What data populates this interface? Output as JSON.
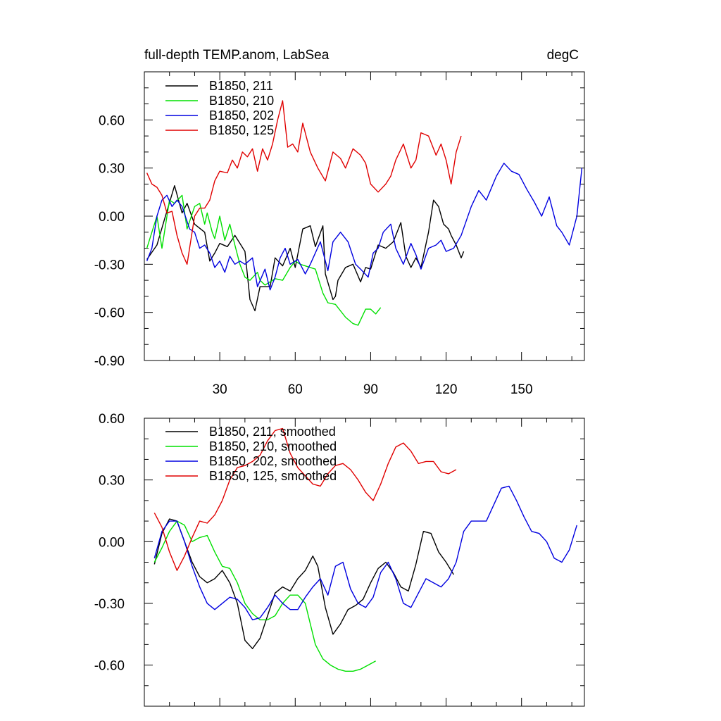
{
  "chart_data": [
    {
      "type": "line",
      "title_left": "full-depth TEMP.anom, LabSea",
      "title_right": "degC",
      "xlabel": "",
      "ylabel": "",
      "xlim": [
        0,
        175
      ],
      "ylim": [
        -0.9,
        0.9
      ],
      "xticks": [
        30,
        60,
        90,
        120,
        150
      ],
      "xtick_labels": [
        "30",
        "60",
        "90",
        "120",
        "150"
      ],
      "yticks": [
        -0.9,
        -0.6,
        -0.3,
        0.0,
        0.3,
        0.6
      ],
      "ytick_labels": [
        "-0.90",
        "-0.60",
        "-0.30",
        "0.00",
        "0.30",
        "0.60"
      ],
      "legend_position": "top-left",
      "grid": false,
      "series": [
        {
          "name": "B1850, 211",
          "color": "#000000",
          "x": [
            1,
            5,
            8,
            12,
            15,
            17,
            20,
            24,
            26,
            28,
            30,
            33,
            36,
            40,
            42,
            44,
            46,
            50,
            52,
            55,
            58,
            60,
            63,
            66,
            68,
            71,
            72,
            75,
            76,
            77,
            80,
            83,
            86,
            88,
            90,
            93,
            96,
            99,
            102,
            104,
            106,
            108,
            110,
            113,
            115,
            117,
            119,
            121,
            122,
            124,
            126,
            127
          ],
          "y": [
            -0.27,
            -0.18,
            -0.02,
            0.19,
            0.02,
            0.08,
            -0.05,
            -0.1,
            -0.28,
            -0.23,
            -0.17,
            -0.19,
            -0.12,
            -0.22,
            -0.52,
            -0.59,
            -0.44,
            -0.44,
            -0.26,
            -0.31,
            -0.2,
            -0.32,
            -0.08,
            -0.06,
            -0.19,
            -0.06,
            -0.36,
            -0.52,
            -0.5,
            -0.4,
            -0.32,
            -0.3,
            -0.41,
            -0.32,
            -0.33,
            -0.18,
            -0.2,
            -0.16,
            -0.04,
            -0.25,
            -0.32,
            -0.26,
            -0.32,
            -0.1,
            0.1,
            0.06,
            -0.05,
            -0.08,
            -0.12,
            -0.18,
            -0.26,
            -0.22
          ]
        },
        {
          "name": "B1850, 210",
          "color": "#00e000",
          "x": [
            1,
            3,
            5,
            7,
            10,
            12,
            15,
            17,
            20,
            22,
            24,
            25,
            27,
            28,
            30,
            32,
            34,
            36,
            38,
            40,
            42,
            45,
            46,
            48,
            52,
            55,
            58,
            60,
            62,
            66,
            68,
            71,
            73,
            76,
            80,
            83,
            85,
            88,
            90,
            92,
            94
          ],
          "y": [
            -0.2,
            -0.1,
            0.0,
            -0.2,
            0.1,
            0.08,
            0.13,
            -0.08,
            0.06,
            0.08,
            -0.05,
            0.02,
            -0.1,
            -0.14,
            0.0,
            -0.15,
            -0.05,
            -0.18,
            -0.3,
            -0.38,
            -0.4,
            -0.35,
            -0.4,
            -0.43,
            -0.39,
            -0.4,
            -0.32,
            -0.28,
            -0.3,
            -0.32,
            -0.33,
            -0.48,
            -0.54,
            -0.55,
            -0.63,
            -0.67,
            -0.68,
            -0.58,
            -0.58,
            -0.61,
            -0.57
          ]
        },
        {
          "name": "B1850, 202",
          "color": "#0000e0",
          "x": [
            1,
            3,
            5,
            7,
            9,
            11,
            13,
            15,
            18,
            20,
            22,
            24,
            26,
            28,
            30,
            32,
            34,
            36,
            38,
            40,
            43,
            45,
            48,
            50,
            52,
            54,
            56,
            58,
            61,
            64,
            66,
            70,
            73,
            75,
            78,
            81,
            84,
            86,
            89,
            91,
            93,
            95,
            98,
            100,
            103,
            106,
            108,
            110,
            113,
            116,
            118,
            120,
            123,
            126,
            130,
            133,
            136,
            140,
            143,
            146,
            149,
            152,
            155,
            158,
            161,
            164,
            166,
            169,
            172,
            174
          ],
          "y": [
            -0.28,
            -0.2,
            0.0,
            0.1,
            0.13,
            0.06,
            0.1,
            0.06,
            -0.08,
            -0.1,
            -0.2,
            -0.18,
            -0.23,
            -0.32,
            -0.28,
            -0.35,
            -0.25,
            -0.3,
            -0.28,
            -0.3,
            -0.26,
            -0.44,
            -0.33,
            -0.46,
            -0.38,
            -0.26,
            -0.2,
            -0.3,
            -0.27,
            -0.36,
            -0.3,
            -0.16,
            -0.34,
            -0.16,
            -0.1,
            -0.16,
            -0.3,
            -0.33,
            -0.38,
            -0.23,
            -0.2,
            -0.1,
            -0.05,
            -0.2,
            -0.3,
            -0.17,
            -0.24,
            -0.33,
            -0.2,
            -0.18,
            -0.15,
            -0.22,
            -0.2,
            -0.12,
            0.06,
            0.16,
            0.1,
            0.25,
            0.33,
            0.28,
            0.26,
            0.17,
            0.09,
            0.0,
            0.12,
            -0.06,
            -0.1,
            -0.18,
            0.0,
            0.3
          ]
        },
        {
          "name": "B1850, 125",
          "color": "#e00000",
          "x": [
            1,
            3,
            5,
            7,
            9,
            11,
            13,
            15,
            17,
            20,
            22,
            24,
            26,
            28,
            30,
            33,
            35,
            37,
            39,
            41,
            43,
            45,
            47,
            49,
            51,
            53,
            55,
            57,
            59,
            61,
            63,
            66,
            69,
            72,
            75,
            78,
            80,
            83,
            86,
            88,
            90,
            93,
            96,
            98,
            100,
            103,
            106,
            108,
            110,
            113,
            116,
            118,
            120,
            122,
            124,
            126
          ],
          "y": [
            0.27,
            0.2,
            0.18,
            0.13,
            0.02,
            0.03,
            -0.12,
            -0.23,
            -0.3,
            0.0,
            0.05,
            0.05,
            0.1,
            0.22,
            0.28,
            0.27,
            0.35,
            0.3,
            0.4,
            0.37,
            0.42,
            0.28,
            0.42,
            0.35,
            0.45,
            0.6,
            0.72,
            0.43,
            0.45,
            0.4,
            0.58,
            0.4,
            0.3,
            0.22,
            0.4,
            0.36,
            0.3,
            0.42,
            0.38,
            0.33,
            0.2,
            0.15,
            0.2,
            0.25,
            0.35,
            0.45,
            0.3,
            0.35,
            0.52,
            0.5,
            0.38,
            0.45,
            0.35,
            0.2,
            0.4,
            0.5
          ]
        }
      ]
    },
    {
      "type": "line",
      "xlabel": "",
      "ylabel": "",
      "xlim": [
        0,
        175
      ],
      "ylim": [
        -0.8,
        0.6
      ],
      "xticks": [
        30,
        60,
        90,
        120,
        150
      ],
      "yticks": [
        -0.6,
        -0.3,
        0.0,
        0.3,
        0.6
      ],
      "ytick_labels": [
        "-0.60",
        "-0.30",
        "0.00",
        "0.30",
        "0.60"
      ],
      "legend_position": "top-left",
      "grid": false,
      "series": [
        {
          "name": "B1850, 211, smoothed",
          "color": "#000000",
          "x": [
            4,
            7,
            10,
            13,
            16,
            19,
            22,
            25,
            28,
            31,
            34,
            37,
            40,
            43,
            46,
            49,
            52,
            55,
            58,
            61,
            64,
            67,
            69,
            72,
            75,
            78,
            81,
            84,
            87,
            90,
            93,
            96,
            99,
            102,
            105,
            108,
            111,
            114,
            117,
            120,
            123
          ],
          "y": [
            -0.11,
            0.04,
            0.11,
            0.1,
            0.0,
            -0.1,
            -0.17,
            -0.2,
            -0.18,
            -0.14,
            -0.2,
            -0.3,
            -0.48,
            -0.52,
            -0.47,
            -0.36,
            -0.25,
            -0.22,
            -0.24,
            -0.18,
            -0.14,
            -0.07,
            -0.12,
            -0.32,
            -0.45,
            -0.4,
            -0.33,
            -0.31,
            -0.28,
            -0.2,
            -0.13,
            -0.1,
            -0.15,
            -0.22,
            -0.24,
            -0.11,
            0.05,
            0.04,
            -0.05,
            -0.1,
            -0.16
          ]
        },
        {
          "name": "B1850, 210, smoothed",
          "color": "#00e000",
          "x": [
            4,
            7,
            10,
            13,
            16,
            19,
            22,
            25,
            28,
            31,
            34,
            37,
            40,
            43,
            46,
            49,
            52,
            55,
            58,
            61,
            64,
            66,
            68,
            71,
            74,
            77,
            80,
            83,
            86,
            89,
            92
          ],
          "y": [
            -0.1,
            -0.03,
            0.05,
            0.1,
            0.08,
            0.0,
            0.02,
            0.03,
            -0.05,
            -0.12,
            -0.13,
            -0.2,
            -0.3,
            -0.35,
            -0.38,
            -0.38,
            -0.36,
            -0.3,
            -0.26,
            -0.26,
            -0.3,
            -0.4,
            -0.5,
            -0.57,
            -0.6,
            -0.62,
            -0.63,
            -0.63,
            -0.62,
            -0.6,
            -0.58
          ]
        },
        {
          "name": "B1850, 202, smoothed",
          "color": "#0000e0",
          "x": [
            4,
            7,
            10,
            13,
            16,
            19,
            22,
            25,
            28,
            31,
            34,
            37,
            40,
            43,
            46,
            49,
            52,
            55,
            58,
            61,
            64,
            67,
            70,
            73,
            76,
            79,
            82,
            85,
            88,
            91,
            94,
            97,
            100,
            103,
            106,
            109,
            112,
            115,
            118,
            121,
            124,
            127,
            130,
            133,
            136,
            139,
            142,
            145,
            148,
            151,
            154,
            157,
            160,
            163,
            166,
            169,
            172
          ],
          "y": [
            -0.08,
            0.05,
            0.1,
            0.1,
            0.0,
            -0.12,
            -0.22,
            -0.3,
            -0.33,
            -0.3,
            -0.27,
            -0.28,
            -0.32,
            -0.38,
            -0.37,
            -0.32,
            -0.26,
            -0.3,
            -0.33,
            -0.33,
            -0.27,
            -0.22,
            -0.18,
            -0.26,
            -0.12,
            -0.1,
            -0.23,
            -0.3,
            -0.32,
            -0.27,
            -0.15,
            -0.1,
            -0.18,
            -0.3,
            -0.32,
            -0.25,
            -0.18,
            -0.2,
            -0.22,
            -0.18,
            -0.1,
            0.05,
            0.1,
            0.1,
            0.1,
            0.18,
            0.26,
            0.27,
            0.2,
            0.12,
            0.05,
            0.04,
            0.0,
            -0.08,
            -0.1,
            -0.04,
            0.08
          ]
        },
        {
          "name": "B1850, 125, smoothed",
          "color": "#e00000",
          "x": [
            4,
            7,
            10,
            13,
            16,
            19,
            22,
            25,
            28,
            31,
            34,
            37,
            40,
            43,
            46,
            49,
            52,
            55,
            58,
            61,
            64,
            67,
            70,
            73,
            76,
            79,
            82,
            85,
            88,
            91,
            94,
            97,
            100,
            103,
            106,
            109,
            112,
            115,
            118,
            121,
            124
          ],
          "y": [
            0.14,
            0.07,
            -0.05,
            -0.14,
            -0.07,
            0.02,
            0.1,
            0.09,
            0.13,
            0.2,
            0.3,
            0.36,
            0.37,
            0.39,
            0.42,
            0.49,
            0.54,
            0.55,
            0.43,
            0.36,
            0.32,
            0.28,
            0.27,
            0.33,
            0.37,
            0.38,
            0.35,
            0.3,
            0.24,
            0.2,
            0.28,
            0.38,
            0.46,
            0.48,
            0.44,
            0.38,
            0.39,
            0.39,
            0.34,
            0.33,
            0.35
          ]
        }
      ]
    }
  ]
}
